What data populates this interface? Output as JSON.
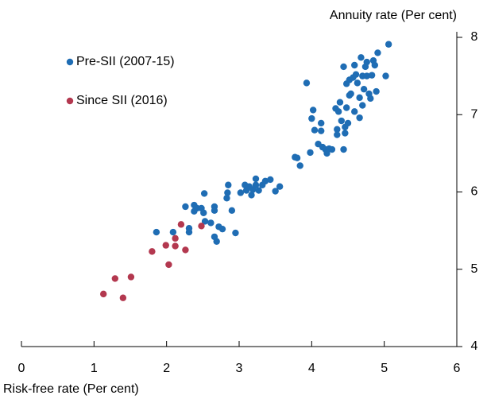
{
  "chart_data": {
    "type": "scatter",
    "x_label": "Risk-free rate (Per cent)",
    "y_label": "Annuity rate (Per cent)",
    "xlim": [
      0,
      6
    ],
    "xticks": [
      0,
      1,
      2,
      3,
      4,
      5,
      6
    ],
    "ylim": [
      4,
      8
    ],
    "yticks": [
      4,
      5,
      6,
      7,
      8
    ],
    "legend": "upper left",
    "series": [
      {
        "name": "Pre-SII (2007-15)",
        "color": "#1f6db4",
        "x": [
          1.86,
          2.09,
          2.31,
          2.31,
          2.26,
          2.38,
          2.38,
          2.42,
          2.52,
          2.48,
          2.51,
          2.53,
          2.61,
          2.66,
          2.66,
          2.72,
          2.66,
          2.69,
          2.77,
          2.83,
          2.84,
          2.85,
          2.9,
          2.95,
          3.02,
          3.08,
          3.1,
          3.14,
          3.17,
          3.19,
          3.23,
          3.23,
          3.27,
          3.32,
          3.36,
          3.43,
          3.5,
          3.56,
          3.77,
          3.8,
          3.84,
          3.93,
          3.98,
          4.0,
          4.02,
          4.04,
          4.09,
          4.13,
          4.13,
          4.15,
          4.19,
          4.21,
          4.24,
          4.28,
          4.33,
          4.37,
          4.35,
          4.35,
          4.39,
          4.41,
          4.44,
          4.44,
          4.46,
          4.46,
          4.48,
          4.48,
          4.5,
          4.52,
          4.52,
          4.54,
          4.57,
          4.59,
          4.61,
          4.63,
          4.66,
          4.66,
          4.68,
          4.7,
          4.72,
          4.74,
          4.76,
          4.76,
          4.79,
          4.81,
          4.83,
          4.85,
          4.87,
          4.89,
          4.91,
          5.02,
          5.06,
          4.7,
          4.59
        ],
        "values": [
          5.48,
          5.48,
          5.48,
          5.53,
          5.81,
          5.83,
          5.75,
          5.79,
          5.98,
          5.79,
          5.73,
          5.62,
          5.6,
          5.81,
          5.76,
          5.55,
          5.42,
          5.36,
          5.52,
          5.92,
          5.99,
          6.09,
          5.76,
          5.47,
          5.99,
          6.09,
          6.02,
          6.07,
          5.96,
          6.03,
          6.17,
          6.09,
          6.02,
          6.09,
          6.14,
          6.16,
          6.01,
          6.07,
          6.45,
          6.44,
          6.34,
          7.41,
          6.51,
          6.95,
          7.06,
          6.8,
          6.62,
          6.89,
          6.79,
          6.58,
          6.55,
          6.5,
          6.56,
          6.55,
          7.08,
          7.04,
          6.81,
          6.74,
          7.16,
          6.92,
          6.55,
          7.62,
          6.84,
          6.76,
          7.09,
          7.4,
          6.89,
          7.45,
          7.25,
          7.27,
          7.48,
          7.64,
          7.52,
          7.41,
          7.22,
          6.96,
          7.74,
          7.5,
          7.33,
          7.62,
          7.5,
          7.68,
          7.27,
          7.21,
          7.51,
          7.7,
          7.64,
          7.3,
          7.8,
          7.5,
          7.91,
          7.12,
          7.04
        ]
      },
      {
        "name": "Since SII (2016)",
        "color": "#b3384f",
        "x": [
          1.13,
          1.29,
          1.51,
          1.4,
          1.8,
          2.03,
          1.99,
          2.12,
          2.12,
          2.2,
          2.26,
          2.48
        ],
        "values": [
          4.68,
          4.88,
          4.9,
          4.63,
          5.23,
          5.06,
          5.31,
          5.3,
          5.4,
          5.58,
          5.25,
          5.56
        ]
      }
    ]
  }
}
